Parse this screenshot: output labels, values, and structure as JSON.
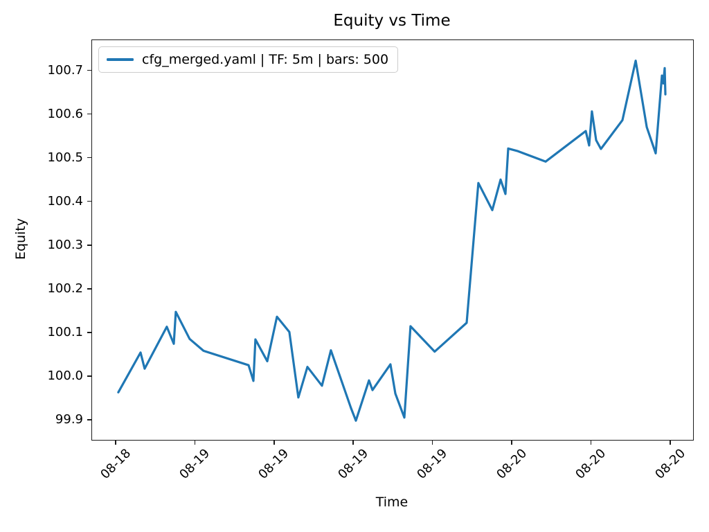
{
  "title": "Equity vs Time",
  "xlabel": "Time",
  "ylabel": "Equity",
  "legend": {
    "label": "cfg_merged.yaml | TF: 5m | bars: 500",
    "swatch_color": "#1f77b4"
  },
  "colors": {
    "line": "#1f77b4",
    "spine": "#1a1a1a",
    "legend_border": "#cccccc",
    "background": "#ffffff",
    "text": "#000000"
  },
  "chart_data": {
    "type": "line",
    "title": "Equity vs Time",
    "xlabel": "Time",
    "ylabel": "Equity",
    "grid": false,
    "legend_position": "upper left",
    "x_unit": "hours after first x tick (dates shown on axis)",
    "xlim": [
      -1.78,
      43.74
    ],
    "ylim": [
      99.854,
      100.769
    ],
    "x_ticks": [
      {
        "t": 0,
        "label": "08-18"
      },
      {
        "t": 6,
        "label": "08-19"
      },
      {
        "t": 12,
        "label": "08-19"
      },
      {
        "t": 18,
        "label": "08-19"
      },
      {
        "t": 24,
        "label": "08-19"
      },
      {
        "t": 30,
        "label": "08-20"
      },
      {
        "t": 36,
        "label": "08-20"
      },
      {
        "t": 42,
        "label": "08-20"
      }
    ],
    "y_ticks": [
      {
        "v": 99.9,
        "label": "99.9"
      },
      {
        "v": 100.0,
        "label": "100.0"
      },
      {
        "v": 100.1,
        "label": "100.1"
      },
      {
        "v": 100.2,
        "label": "100.2"
      },
      {
        "v": 100.3,
        "label": "100.3"
      },
      {
        "v": 100.4,
        "label": "100.4"
      },
      {
        "v": 100.5,
        "label": "100.5"
      },
      {
        "v": 100.6,
        "label": "100.6"
      },
      {
        "v": 100.7,
        "label": "100.7"
      }
    ],
    "series": [
      {
        "name": "cfg_merged.yaml | TF: 5m | bars: 500",
        "color": "#1f77b4",
        "points": [
          [
            0.21,
            99.963
          ],
          [
            1.89,
            100.054
          ],
          [
            2.2,
            100.017
          ],
          [
            3.88,
            100.113
          ],
          [
            4.41,
            100.074
          ],
          [
            4.56,
            100.147
          ],
          [
            5.61,
            100.085
          ],
          [
            6.66,
            100.058
          ],
          [
            10.07,
            100.025
          ],
          [
            10.44,
            99.989
          ],
          [
            10.59,
            100.084
          ],
          [
            11.49,
            100.034
          ],
          [
            12.22,
            100.136
          ],
          [
            13.16,
            100.101
          ],
          [
            13.84,
            99.951
          ],
          [
            14.53,
            100.021
          ],
          [
            15.63,
            99.978
          ],
          [
            16.31,
            100.059
          ],
          [
            17.83,
            99.927
          ],
          [
            18.2,
            99.898
          ],
          [
            19.19,
            99.99
          ],
          [
            19.46,
            99.968
          ],
          [
            20.82,
            100.027
          ],
          [
            21.19,
            99.96
          ],
          [
            21.87,
            99.905
          ],
          [
            22.34,
            100.114
          ],
          [
            24.17,
            100.056
          ],
          [
            26.59,
            100.122
          ],
          [
            27.48,
            100.442
          ],
          [
            28.53,
            100.38
          ],
          [
            29.16,
            100.45
          ],
          [
            29.53,
            100.417
          ],
          [
            29.74,
            100.521
          ],
          [
            30.47,
            100.515
          ],
          [
            32.57,
            100.491
          ],
          [
            35.61,
            100.561
          ],
          [
            35.87,
            100.528
          ],
          [
            36.08,
            100.606
          ],
          [
            36.4,
            100.54
          ],
          [
            36.76,
            100.52
          ],
          [
            38.39,
            100.586
          ],
          [
            39.39,
            100.722
          ],
          [
            40.23,
            100.57
          ],
          [
            40.91,
            100.51
          ],
          [
            41.38,
            100.688
          ],
          [
            41.48,
            100.67
          ],
          [
            41.59,
            100.705
          ],
          [
            41.64,
            100.645
          ]
        ]
      }
    ]
  }
}
